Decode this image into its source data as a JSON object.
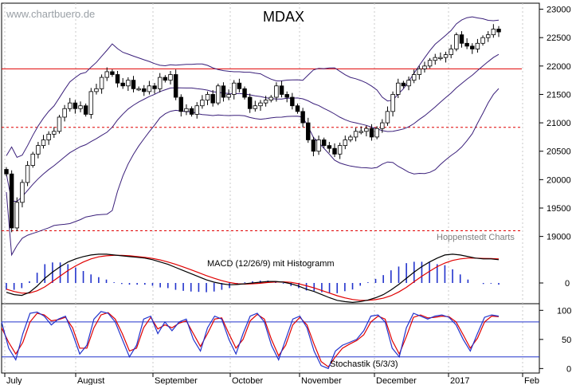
{
  "watermark": "www.chartbuero.de",
  "credit": "Hoppenstedt Charts",
  "chart_data": [
    {
      "type": "candlestick",
      "title": "MDAX",
      "yticks": [
        19000,
        19500,
        20000,
        20500,
        21000,
        21500,
        22000,
        22500,
        23000
      ],
      "ylim": [
        18700,
        23050
      ],
      "xticks": [
        "July",
        "August",
        "September",
        "October",
        "November",
        "December",
        "2017",
        "Feb"
      ],
      "horizontal_lines": [
        {
          "value": 21950,
          "style": "solid",
          "color": "#e00000"
        },
        {
          "value": 20920,
          "style": "dashed",
          "color": "#e00000"
        },
        {
          "value": 19100,
          "style": "dashed",
          "color": "#e00000"
        }
      ],
      "overlay": "Bollinger Bands",
      "close": [
        20100,
        19150,
        19600,
        19950,
        20250,
        20450,
        20600,
        20700,
        20800,
        20850,
        21100,
        21250,
        21350,
        21250,
        21300,
        21150,
        21550,
        21600,
        21800,
        21900,
        21850,
        21700,
        21650,
        21750,
        21600,
        21600,
        21550,
        21650,
        21600,
        21800,
        21750,
        21850,
        21450,
        21200,
        21250,
        21150,
        21300,
        21400,
        21500,
        21350,
        21650,
        21450,
        21500,
        21700,
        21600,
        21450,
        21250,
        21300,
        21350,
        21400,
        21450,
        21650,
        21500,
        21450,
        21300,
        21200,
        21000,
        20700,
        20500,
        20700,
        20600,
        20550,
        20450,
        20600,
        20700,
        20750,
        20850,
        20850,
        20900,
        20750,
        20900,
        21000,
        21200,
        21500,
        21700,
        21650,
        21750,
        21850,
        21950,
        22000,
        22100,
        22150,
        22150,
        22200,
        22300,
        22550,
        22400,
        22350,
        22300,
        22400,
        22500,
        22550,
        22650,
        22600
      ]
    },
    {
      "type": "line+histogram",
      "label": "MACD (12/26/9) mit Histogramm",
      "yticks": [
        0
      ],
      "macd": [
        -60,
        -75,
        -80,
        -60,
        -20,
        30,
        70,
        105,
        135,
        155,
        170,
        180,
        185,
        185,
        180,
        175,
        170,
        165,
        160,
        150,
        135,
        120,
        100,
        80,
        60,
        40,
        20,
        5,
        -5,
        -12,
        -10,
        -5,
        0,
        5,
        10,
        10,
        5,
        -5,
        -20,
        -40,
        -55,
        -75,
        -95,
        -112,
        -120,
        -125,
        -120,
        -110,
        -95,
        -75,
        -45,
        -10,
        30,
        70,
        105,
        135,
        160,
        180,
        185,
        180,
        170,
        160,
        155,
        155,
        150
      ],
      "signal": [
        -40,
        -55,
        -65,
        -65,
        -50,
        -25,
        10,
        45,
        80,
        110,
        135,
        155,
        168,
        175,
        178,
        178,
        175,
        170,
        165,
        158,
        148,
        135,
        120,
        103,
        85,
        66,
        47,
        30,
        15,
        3,
        -5,
        -7,
        -5,
        -2,
        3,
        6,
        7,
        4,
        -5,
        -18,
        -32,
        -48,
        -65,
        -82,
        -96,
        -106,
        -112,
        -112,
        -107,
        -98,
        -82,
        -58,
        -28,
        8,
        43,
        75,
        105,
        128,
        145,
        155,
        160,
        160,
        158,
        157,
        155
      ]
    },
    {
      "type": "line",
      "label": "Stochastik (5/3/3)",
      "yticks": [
        0,
        50,
        100
      ],
      "ylim": [
        -5,
        110
      ],
      "reference_lines": [
        80,
        20
      ],
      "k": [
        80,
        35,
        15,
        60,
        95,
        97,
        90,
        75,
        85,
        90,
        60,
        25,
        40,
        85,
        98,
        95,
        80,
        50,
        20,
        40,
        85,
        90,
        60,
        80,
        65,
        80,
        85,
        50,
        30,
        70,
        90,
        85,
        50,
        25,
        60,
        90,
        95,
        80,
        40,
        15,
        50,
        85,
        90,
        70,
        30,
        5,
        0,
        30,
        40,
        45,
        50,
        65,
        90,
        92,
        80,
        35,
        20,
        70,
        95,
        90,
        85,
        90,
        92,
        88,
        75,
        50,
        30,
        60,
        88,
        92,
        90
      ],
      "d": [
        70,
        45,
        25,
        45,
        80,
        95,
        92,
        82,
        84,
        88,
        70,
        35,
        35,
        70,
        92,
        96,
        85,
        60,
        30,
        35,
        70,
        88,
        68,
        75,
        70,
        78,
        82,
        60,
        38,
        60,
        85,
        87,
        60,
        35,
        50,
        82,
        93,
        85,
        50,
        22,
        40,
        75,
        88,
        75,
        42,
        12,
        3,
        20,
        35,
        42,
        48,
        58,
        80,
        90,
        85,
        48,
        25,
        55,
        88,
        92,
        87,
        88,
        90,
        89,
        80,
        58,
        35,
        52,
        80,
        90,
        89
      ]
    }
  ]
}
